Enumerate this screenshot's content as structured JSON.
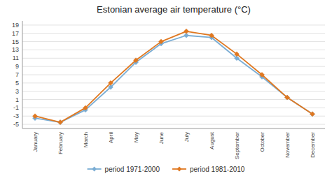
{
  "chart_data": {
    "type": "line",
    "title": "Estonian average air temperature (°C)",
    "categories": [
      "January",
      "February",
      "March",
      "April",
      "May",
      "June",
      "July",
      "August",
      "September",
      "October",
      "November",
      "December"
    ],
    "series": [
      {
        "name": "period 1971-2000",
        "color": "#7aadd4",
        "marker": "diamond",
        "values": [
          -3.5,
          -4.5,
          -1.5,
          4.0,
          10.0,
          14.5,
          16.5,
          16.0,
          11.0,
          6.5,
          1.5,
          -2.5
        ]
      },
      {
        "name": "period 1981-2010",
        "color": "#e07820",
        "marker": "diamond",
        "values": [
          -3.0,
          -4.5,
          -1.0,
          5.0,
          10.5,
          15.0,
          17.5,
          16.5,
          12.0,
          7.0,
          1.5,
          -2.5
        ]
      }
    ],
    "ylim": [
      -6,
      20
    ],
    "yticks": [
      -5,
      -3,
      -1,
      1,
      3,
      5,
      7,
      9,
      11,
      13,
      15,
      17,
      19
    ],
    "grid": true,
    "legend": "bottom"
  }
}
